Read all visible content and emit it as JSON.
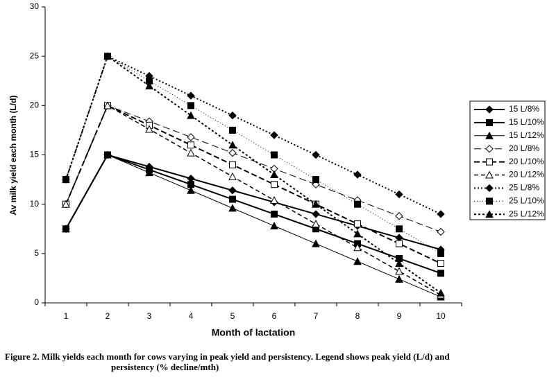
{
  "chart_data": {
    "type": "line",
    "y_label": "Av milk yield each month (L/d)",
    "x_label": "Month of lactation",
    "caption": [
      "Figure 2.  Milk yields each month for cows varying in peak yield and persistency.  Legend shows peak yield (L/d) and",
      "persistency (% decline/mth)"
    ],
    "categories": [
      "1",
      "2",
      "3",
      "4",
      "5",
      "6",
      "7",
      "8",
      "9",
      "10"
    ],
    "ylim": [
      0,
      30
    ],
    "yticks": [
      0,
      5,
      10,
      15,
      20,
      25,
      30
    ],
    "series": [
      {
        "name": "15 L/8%",
        "color": "#000000",
        "marker": "diamond",
        "filled": true,
        "dash": "none",
        "width": 2,
        "values": [
          7.5,
          15,
          13.8,
          12.6,
          11.4,
          10.2,
          9.0,
          7.8,
          6.6,
          5.4
        ]
      },
      {
        "name": "15 L/10%",
        "color": "#000000",
        "marker": "square",
        "filled": true,
        "dash": "none",
        "width": 2,
        "values": [
          7.5,
          15,
          13.5,
          12,
          10.5,
          9,
          7.5,
          6,
          4.5,
          3
        ]
      },
      {
        "name": "15 L/12%",
        "color": "#000000",
        "marker": "triangle",
        "filled": true,
        "dash": "none",
        "width": 1,
        "values": [
          7.5,
          15,
          13.2,
          11.4,
          9.6,
          7.8,
          6,
          4.2,
          2.4,
          0.6
        ]
      },
      {
        "name": "20 L/8%",
        "color": "#000000",
        "marker": "diamond",
        "filled": false,
        "dash": "10,5",
        "width": 1,
        "values": [
          10,
          20,
          18.4,
          16.8,
          15.2,
          13.6,
          12,
          10.4,
          8.8,
          7.2
        ]
      },
      {
        "name": "20 L/10%",
        "color": "#000000",
        "marker": "square",
        "filled": false,
        "dash": "8,4",
        "width": 2,
        "values": [
          10,
          20,
          18,
          16,
          14,
          12,
          10,
          8,
          6,
          4
        ]
      },
      {
        "name": "20 L/12%",
        "color": "#000000",
        "marker": "triangle",
        "filled": false,
        "dash": "6,4",
        "width": 1.5,
        "values": [
          10,
          20,
          17.6,
          15.2,
          12.8,
          10.4,
          8,
          5.6,
          3.2,
          0.8
        ]
      },
      {
        "name": "25 L/8%",
        "color": "#000000",
        "marker": "diamond",
        "filled": true,
        "dash": "2,3",
        "width": 2,
        "values": [
          12.5,
          25,
          23,
          21,
          19,
          17,
          15,
          13,
          11,
          9
        ]
      },
      {
        "name": "25 L/10%",
        "color": "#000000",
        "marker": "square",
        "filled": true,
        "dash": "1,3",
        "width": 1,
        "values": [
          12.5,
          25,
          22.5,
          20,
          17.5,
          15,
          12.5,
          10,
          7.5,
          5
        ]
      },
      {
        "name": "25 L/12%",
        "color": "#000000",
        "marker": "triangle",
        "filled": true,
        "dash": "3,3",
        "width": 2,
        "values": [
          12.5,
          25,
          22,
          19,
          16,
          13,
          10,
          7,
          4,
          1
        ]
      }
    ]
  }
}
